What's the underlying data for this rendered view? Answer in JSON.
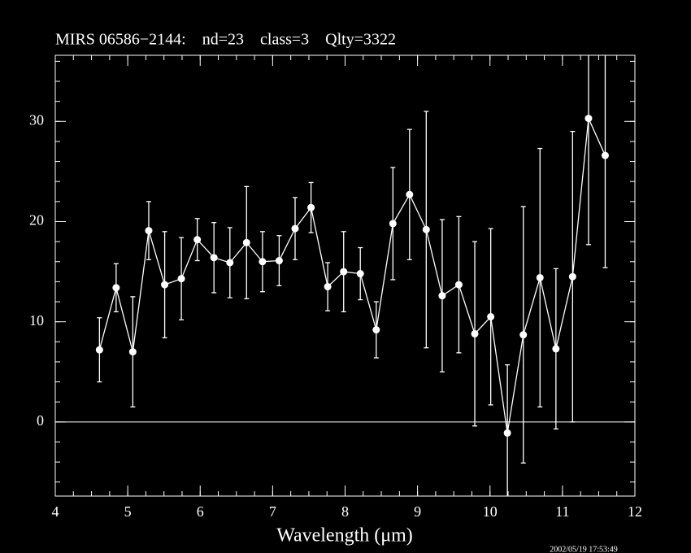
{
  "chart_data": {
    "type": "line",
    "title": "MIRS 06586−2144:    nd=23    class=3    Qlty=3322",
    "xlabel": "Wavelength (μm)",
    "timestamp": "2002/05/19 17:53:49",
    "xlim": [
      4,
      12
    ],
    "ylim": [
      -7.4,
      36.6
    ],
    "xticks": [
      4,
      5,
      6,
      7,
      8,
      9,
      10,
      11,
      12
    ],
    "yticks": [
      0,
      10,
      20,
      30
    ],
    "hline": 0,
    "series": [
      {
        "color": "#ffffff",
        "x": [
          4.61,
          4.84,
          5.07,
          5.29,
          5.51,
          5.74,
          5.96,
          6.19,
          6.41,
          6.64,
          6.86,
          7.09,
          7.31,
          7.53,
          7.76,
          7.98,
          8.21,
          8.43,
          8.66,
          8.89,
          9.12,
          9.34,
          9.57,
          9.79,
          10.01,
          10.24,
          10.46,
          10.69,
          10.91,
          11.14,
          11.36,
          11.59
        ],
        "values": [
          7.2,
          13.4,
          7.0,
          19.1,
          13.7,
          14.3,
          18.2,
          16.4,
          15.9,
          17.9,
          16.0,
          16.1,
          19.3,
          21.4,
          13.5,
          15.0,
          14.8,
          9.2,
          19.8,
          22.7,
          19.2,
          12.6,
          13.7,
          8.8,
          10.5,
          -1.1,
          8.7,
          14.4,
          7.3,
          14.5,
          30.3,
          26.6
        ],
        "errors": [
          3.2,
          2.4,
          5.5,
          2.9,
          5.3,
          4.1,
          2.1,
          3.5,
          3.5,
          5.6,
          3.0,
          2.5,
          3.1,
          2.5,
          2.4,
          4.0,
          2.6,
          2.8,
          5.6,
          6.5,
          11.8,
          7.6,
          6.8,
          9.2,
          8.8,
          6.8,
          12.8,
          12.9,
          8.0,
          14.5,
          12.6,
          11.2
        ]
      }
    ]
  }
}
